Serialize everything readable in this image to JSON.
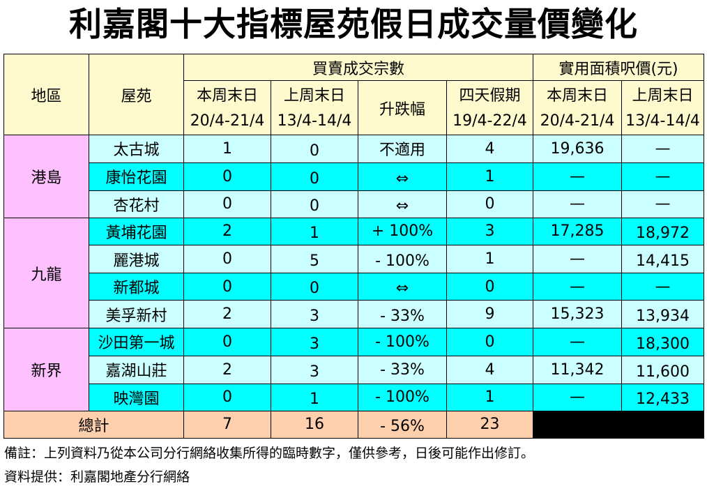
{
  "title": "利嘉閣十大指標屋苑假日成交量價變化",
  "header": {
    "region": "地區",
    "estate": "屋苑",
    "transactions_group": "買賣成交宗數",
    "price_group": "實用面積呎價(元)",
    "this_weekend": "本周末日",
    "last_weekend": "上周末日",
    "change": "升跌幅",
    "holiday": "四天假期",
    "date_this": "20/4-21/4",
    "date_last": "13/4-14/4",
    "date_holiday": "19/4-22/4"
  },
  "regions": [
    {
      "name": "港島",
      "rows": [
        {
          "estate": "太古城",
          "this": "1",
          "last": "0",
          "change": "不適用",
          "holiday": "4",
          "price_this": "19,636",
          "price_last": "—"
        },
        {
          "estate": "康怡花園",
          "this": "0",
          "last": "0",
          "change": "⇔",
          "holiday": "1",
          "price_this": "—",
          "price_last": "—"
        },
        {
          "estate": "杏花村",
          "this": "0",
          "last": "0",
          "change": "⇔",
          "holiday": "0",
          "price_this": "—",
          "price_last": "—"
        }
      ]
    },
    {
      "name": "九龍",
      "rows": [
        {
          "estate": "黃埔花園",
          "this": "2",
          "last": "1",
          "change": "+ 100%",
          "holiday": "3",
          "price_this": "17,285",
          "price_last": "18,972"
        },
        {
          "estate": "麗港城",
          "this": "0",
          "last": "5",
          "change": "- 100%",
          "holiday": "1",
          "price_this": "—",
          "price_last": "14,415"
        },
        {
          "estate": "新都城",
          "this": "0",
          "last": "0",
          "change": "⇔",
          "holiday": "0",
          "price_this": "—",
          "price_last": "—"
        },
        {
          "estate": "美孚新村",
          "this": "2",
          "last": "3",
          "change": "- 33%",
          "holiday": "9",
          "price_this": "15,323",
          "price_last": "13,934"
        }
      ]
    },
    {
      "name": "新界",
      "rows": [
        {
          "estate": "沙田第一城",
          "this": "0",
          "last": "3",
          "change": "- 100%",
          "holiday": "0",
          "price_this": "—",
          "price_last": "18,300"
        },
        {
          "estate": "嘉湖山莊",
          "this": "2",
          "last": "3",
          "change": "- 33%",
          "holiday": "4",
          "price_this": "11,342",
          "price_last": "11,600"
        },
        {
          "estate": "映灣園",
          "this": "0",
          "last": "1",
          "change": "- 100%",
          "holiday": "1",
          "price_this": "—",
          "price_last": "12,433"
        }
      ]
    }
  ],
  "total": {
    "label": "總計",
    "this": "7",
    "last": "16",
    "change": "- 56%",
    "holiday": "23"
  },
  "notes": {
    "remark": "備註：上列資料乃從本公司分行網絡收集所得的臨時數字，僅供參考，日後可能作出修訂。",
    "source": "資料提供：利嘉閣地產分行網絡"
  }
}
